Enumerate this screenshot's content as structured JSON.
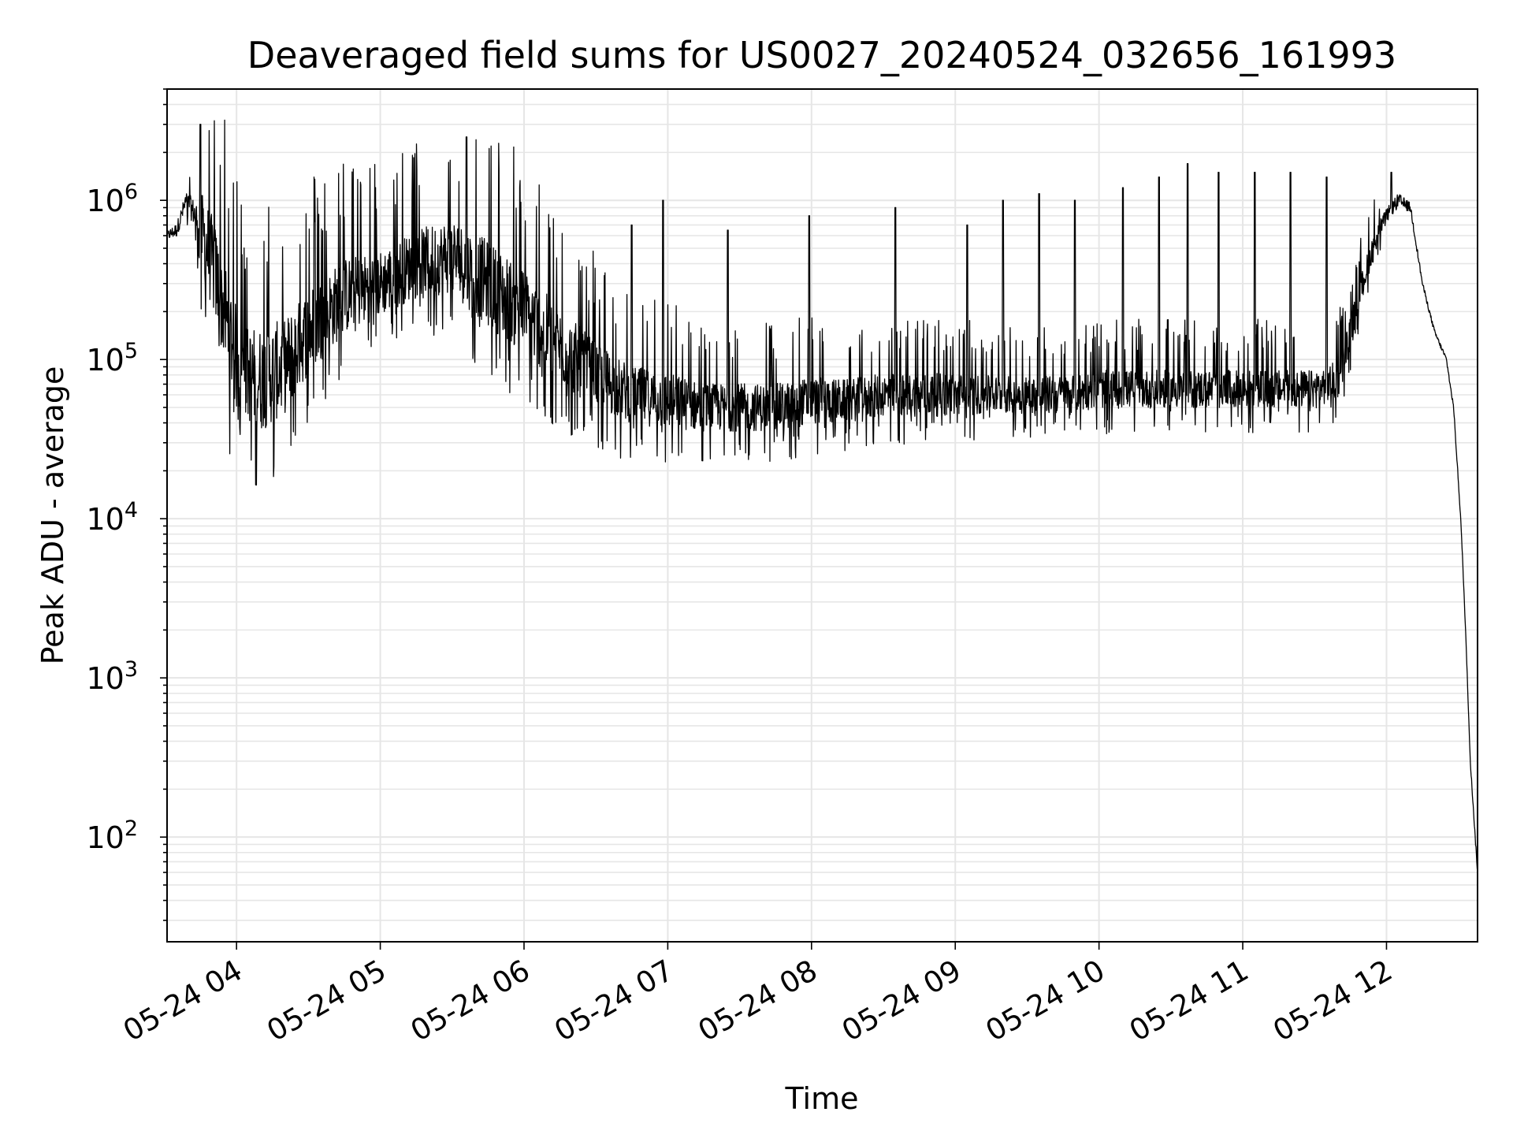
{
  "chart_data": {
    "type": "line",
    "title": "Deaveraged field sums for US0027_20240524_032656_161993",
    "xlabel": "Time",
    "ylabel": "Peak ADU - average",
    "x_range": [
      "2024-05-24 03:31",
      "2024-05-24 12:38"
    ],
    "y_scale": "log",
    "ylim": [
      22,
      5000000
    ],
    "grid": "major and minor, light gray",
    "line_color": "#000000",
    "x_ticks": [
      "05-24 04",
      "05-24 05",
      "05-24 06",
      "05-24 07",
      "05-24 08",
      "05-24 09",
      "05-24 10",
      "05-24 11",
      "05-24 12"
    ],
    "x_tick_times": [
      "2024-05-24 04:00",
      "2024-05-24 05:00",
      "2024-05-24 06:00",
      "2024-05-24 07:00",
      "2024-05-24 08:00",
      "2024-05-24 09:00",
      "2024-05-24 10:00",
      "2024-05-24 11:00",
      "2024-05-24 12:00"
    ],
    "y_ticks": [
      {
        "base": "10",
        "exp": "2"
      },
      {
        "base": "10",
        "exp": "3"
      },
      {
        "base": "10",
        "exp": "4"
      },
      {
        "base": "10",
        "exp": "5"
      },
      {
        "base": "10",
        "exp": "6"
      }
    ],
    "y_tick_values": [
      100,
      1000,
      10000,
      100000,
      1000000
    ],
    "series": [
      {
        "x": [
          "2024-05-24 03:31",
          "2024-05-24 03:35",
          "2024-05-24 03:39",
          "2024-05-24 03:43",
          "2024-05-24 03:46",
          "2024-05-24 03:50",
          "2024-05-24 03:55",
          "2024-05-24 04:00",
          "2024-05-24 04:05",
          "2024-05-24 04:10",
          "2024-05-24 04:20",
          "2024-05-24 04:30",
          "2024-05-24 04:45",
          "2024-05-24 05:00",
          "2024-05-24 05:15",
          "2024-05-24 05:30",
          "2024-05-24 05:45",
          "2024-05-24 06:00",
          "2024-05-24 06:15",
          "2024-05-24 06:30",
          "2024-05-24 06:45",
          "2024-05-24 07:00",
          "2024-05-24 07:15",
          "2024-05-24 07:30",
          "2024-05-24 07:45",
          "2024-05-24 08:00",
          "2024-05-24 08:15",
          "2024-05-24 08:30",
          "2024-05-24 08:45",
          "2024-05-24 09:00",
          "2024-05-24 09:15",
          "2024-05-24 09:30",
          "2024-05-24 09:45",
          "2024-05-24 10:00",
          "2024-05-24 10:15",
          "2024-05-24 10:30",
          "2024-05-24 10:45",
          "2024-05-24 11:00",
          "2024-05-24 11:15",
          "2024-05-24 11:30",
          "2024-05-24 11:40",
          "2024-05-24 11:45",
          "2024-05-24 11:50",
          "2024-05-24 11:55",
          "2024-05-24 12:00",
          "2024-05-24 12:05",
          "2024-05-24 12:10",
          "2024-05-24 12:15",
          "2024-05-24 12:20",
          "2024-05-24 12:25",
          "2024-05-24 12:28",
          "2024-05-24 12:31",
          "2024-05-24 12:33",
          "2024-05-24 12:35",
          "2024-05-24 12:37",
          "2024-05-24 12:38"
        ],
        "base": [
          600000,
          650000,
          1000000,
          800000,
          600000,
          400000,
          200000,
          100000,
          80000,
          75000,
          90000,
          150000,
          250000,
          300000,
          400000,
          450000,
          300000,
          200000,
          120000,
          80000,
          60000,
          55000,
          50000,
          50000,
          50000,
          55000,
          55000,
          60000,
          60000,
          60000,
          60000,
          60000,
          60000,
          65000,
          65000,
          65000,
          65000,
          65000,
          65000,
          65000,
          75000,
          150000,
          300000,
          550000,
          800000,
          1000000,
          900000,
          300000,
          150000,
          100000,
          50000,
          10000,
          2000,
          300,
          100,
          60
        ],
        "spread": [
          0.1,
          0.15,
          0.2,
          0.3,
          0.9,
          1.0,
          1.1,
          1.1,
          1.0,
          1.1,
          1.0,
          0.9,
          0.8,
          0.7,
          0.7,
          0.8,
          0.9,
          0.9,
          0.8,
          0.7,
          0.6,
          0.6,
          0.5,
          0.5,
          0.5,
          0.5,
          0.45,
          0.45,
          0.45,
          0.45,
          0.4,
          0.4,
          0.4,
          0.4,
          0.4,
          0.4,
          0.4,
          0.4,
          0.4,
          0.4,
          0.4,
          0.35,
          0.3,
          0.25,
          0.15,
          0.15,
          0.1,
          0.05,
          0.05,
          0.05,
          0.05,
          0.05,
          0.05,
          0.05,
          0.05,
          0.05
        ],
        "upward_spikes": [
          {
            "t": "2024-05-24 03:45",
            "v": 3000000
          },
          {
            "t": "2024-05-24 05:36",
            "v": 2500000
          },
          {
            "t": "2024-05-24 06:45",
            "v": 700000
          },
          {
            "t": "2024-05-24 06:58",
            "v": 1000000
          },
          {
            "t": "2024-05-24 07:25",
            "v": 650000
          },
          {
            "t": "2024-05-24 07:59",
            "v": 800000
          },
          {
            "t": "2024-05-24 08:35",
            "v": 900000
          },
          {
            "t": "2024-05-24 09:05",
            "v": 700000
          },
          {
            "t": "2024-05-24 09:20",
            "v": 1000000
          },
          {
            "t": "2024-05-24 09:35",
            "v": 1100000
          },
          {
            "t": "2024-05-24 09:50",
            "v": 1000000
          },
          {
            "t": "2024-05-24 10:10",
            "v": 1200000
          },
          {
            "t": "2024-05-24 10:25",
            "v": 1400000
          },
          {
            "t": "2024-05-24 10:37",
            "v": 1700000
          },
          {
            "t": "2024-05-24 10:50",
            "v": 1500000
          },
          {
            "t": "2024-05-24 11:05",
            "v": 1500000
          },
          {
            "t": "2024-05-24 11:20",
            "v": 1500000
          },
          {
            "t": "2024-05-24 11:35",
            "v": 1400000
          },
          {
            "t": "2024-05-24 12:02",
            "v": 1500000
          }
        ]
      }
    ]
  }
}
